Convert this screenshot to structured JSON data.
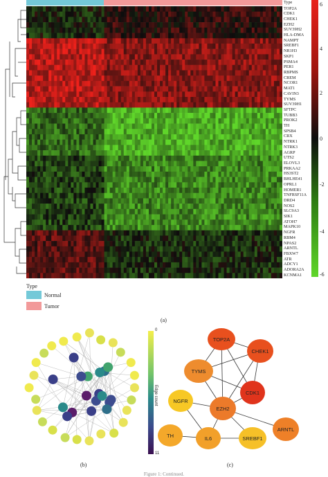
{
  "heatmap": {
    "type_label": "Type",
    "genes": [
      "TOP2A",
      "CDK1",
      "CHEK1",
      "EZH2",
      "SUV39H2",
      "HLA-DMA",
      "NAMPT",
      "SREBF1",
      "NR1H3",
      "SKP1",
      "PSMA4",
      "PER1",
      "RBPMS",
      "CREM",
      "NCOR1",
      "MAT1",
      "CAVIN3",
      "TYMS",
      "SUV39H1",
      "SFTPC",
      "TUBB3",
      "PROK2",
      "TH",
      "SPSB4",
      "CRX",
      "NTRK1",
      "NTRK3",
      "AGRP",
      "UTS2",
      "ELOVL3",
      "PRKAA2",
      "HS3ST2",
      "BHLHE41",
      "OPRL1",
      "HOMER1",
      "TNFRSF11A",
      "DRD4",
      "NOS2",
      "SLC9A3",
      "SIK1",
      "ATOH7",
      "MAPK10",
      "NGFR",
      "RBM4",
      "NPAS2",
      "ARNTL",
      "FBXW7",
      "ATR",
      "ADCY1",
      "ADORA2A",
      "KCNMA1"
    ],
    "scale_ticks": [
      "6",
      "4",
      "2",
      "0",
      "-2",
      "-4",
      "-6"
    ],
    "colors": {
      "high": "#e8221b",
      "mid": "#0d0d0d",
      "low": "#5fd62a",
      "normal": "#74c9d8",
      "tumor": "#f29a9a"
    }
  },
  "legend": {
    "title": "Type",
    "items": [
      {
        "label": "Normal",
        "color": "#74c9d8"
      },
      {
        "label": "Tumor",
        "color": "#f29a9a"
      }
    ]
  },
  "panels": {
    "a": "(a)",
    "b": "(b)",
    "c": "(c)"
  },
  "colorbar": {
    "label": "Edge count",
    "top": "0",
    "bottom": "11"
  },
  "network": {
    "nodes": [
      {
        "label": "TOP2A",
        "color": "#e8501e"
      },
      {
        "label": "CHEK1",
        "color": "#e8501e"
      },
      {
        "label": "TYMS",
        "color": "#ee8c2e"
      },
      {
        "label": "CDK1",
        "color": "#e0341c"
      },
      {
        "label": "NGFR",
        "color": "#f7c825"
      },
      {
        "label": "EZH2",
        "color": "#ec7a2a"
      },
      {
        "label": "TH",
        "color": "#f4a82a"
      },
      {
        "label": "IL6",
        "color": "#f2a02a"
      },
      {
        "label": "SREBF1",
        "color": "#f6c028"
      },
      {
        "label": "ARNTL",
        "color": "#ee8028"
      }
    ]
  },
  "footer": "Figure 1: Continued."
}
